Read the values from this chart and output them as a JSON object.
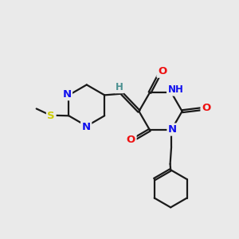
{
  "bg_color": "#eaeaea",
  "bond_color": "#1a1a1a",
  "bond_width": 1.6,
  "dbo": 0.06,
  "atom_colors": {
    "N": "#1010ee",
    "O": "#ee1010",
    "S": "#cccc00",
    "H_label": "#4a9090",
    "C": "#1a1a1a"
  },
  "fs": 8.5,
  "fig_w": 3.0,
  "fig_h": 3.0,
  "dpi": 100
}
